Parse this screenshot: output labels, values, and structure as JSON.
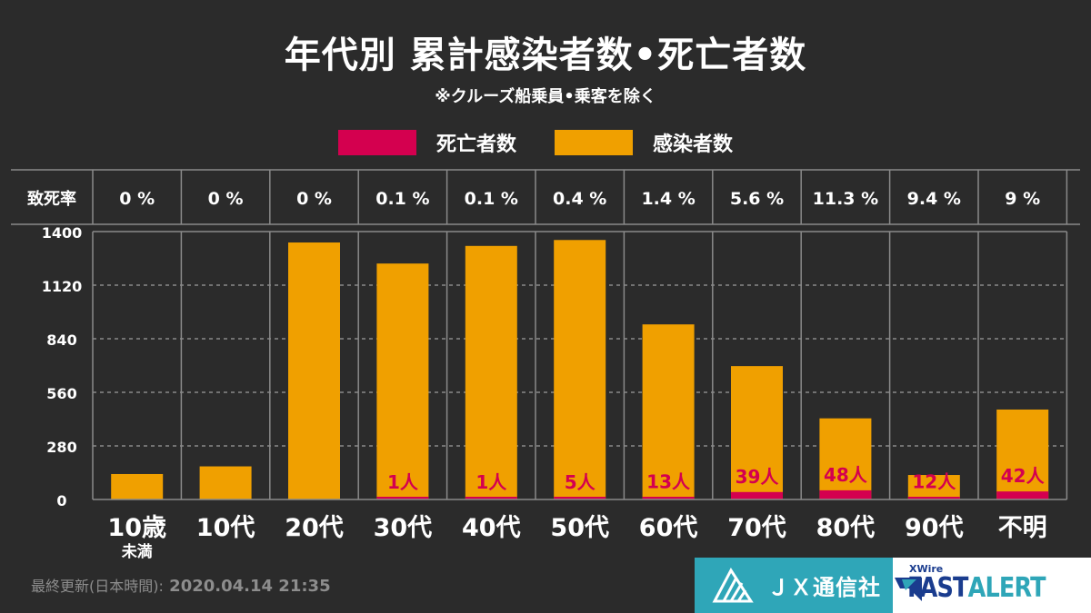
{
  "header": {
    "title": "年代別 累計感染者数•死亡者数",
    "subtitle": "※クルーズ船乗員•乗客を除く"
  },
  "legend": [
    {
      "label": "死亡者数",
      "color": "#d4004f"
    },
    {
      "label": "感染者数",
      "color": "#f0a000"
    }
  ],
  "chart_data": {
    "type": "bar",
    "stacked": true,
    "categories": [
      "10歳未満",
      "10代",
      "20代",
      "30代",
      "40代",
      "50代",
      "60代",
      "70代",
      "80代",
      "90代",
      "不明"
    ],
    "category_lines": [
      [
        "10歳",
        "未満"
      ],
      [
        "10代"
      ],
      [
        "20代"
      ],
      [
        "30代"
      ],
      [
        "40代"
      ],
      [
        "50代"
      ],
      [
        "60代"
      ],
      [
        "70代"
      ],
      [
        "80代"
      ],
      [
        "90代"
      ],
      [
        "不明"
      ]
    ],
    "series": [
      {
        "name": "死亡者数",
        "color": "#d4004f",
        "values": [
          0,
          0,
          0,
          1,
          1,
          5,
          13,
          39,
          48,
          12,
          42
        ]
      },
      {
        "name": "感染者数",
        "color": "#f0a000",
        "values": [
          133,
          173,
          1343,
          1233,
          1325,
          1356,
          915,
          697,
          424,
          128,
          470
        ]
      }
    ],
    "death_labels": [
      "",
      "",
      "",
      "1人",
      "1人",
      "5人",
      "13人",
      "39人",
      "48人",
      "12人",
      "42人"
    ],
    "fatality_header": "致死率",
    "fatality_rates": [
      "0 %",
      "0 %",
      "0 %",
      "0.1 %",
      "0.1 %",
      "0.4 %",
      "1.4 %",
      "5.6 %",
      "11.3 %",
      "9.4 %",
      "9 %"
    ],
    "yticks": [
      "0",
      "280",
      "560",
      "840",
      "1120",
      "1400"
    ],
    "ylim": [
      0,
      1400
    ],
    "grid": true
  },
  "footer": {
    "update_label": "最終更新(日本時間):",
    "update_time": "2020.04.14 21:35",
    "brand_jx": "ＪＸ通信社",
    "brand_xwire": "XWire",
    "brand_fast": "FAST",
    "brand_alert": "ALERT"
  }
}
